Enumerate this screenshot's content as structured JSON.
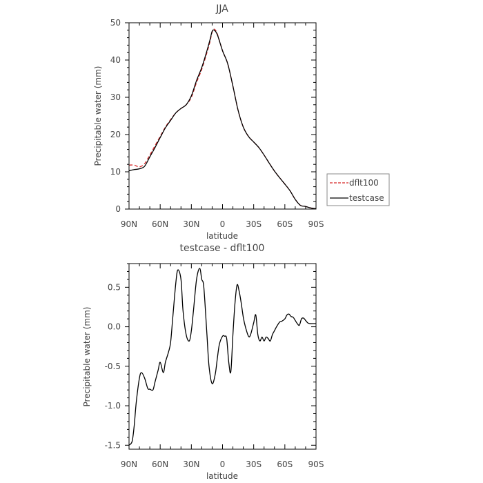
{
  "chart_data": [
    {
      "type": "line",
      "title": "JJA",
      "xlabel": "latitude",
      "ylabel": "Precipitable water (mm)",
      "xlim": [
        90,
        -90
      ],
      "ylim": [
        0,
        50
      ],
      "x_ticks": [
        90,
        60,
        30,
        0,
        -30,
        -60,
        -90
      ],
      "x_tick_labels": [
        "90N",
        "60N",
        "30N",
        "0",
        "30S",
        "60S",
        "90S"
      ],
      "y_ticks": [
        0,
        10,
        20,
        30,
        40,
        50
      ],
      "y_tick_labels": [
        "0",
        "10",
        "20",
        "30",
        "40",
        "50"
      ],
      "legend_position": "right",
      "series": [
        {
          "name": "dflt100",
          "color": "#d62728",
          "dash": "dashed",
          "x": [
            90,
            85,
            80,
            75,
            70,
            65,
            60,
            55,
            50,
            45,
            40,
            35,
            30,
            25,
            20,
            15,
            12,
            10,
            8,
            5,
            0,
            -5,
            -10,
            -15,
            -20,
            -25,
            -30,
            -35,
            -40,
            -45,
            -50,
            -55,
            -60,
            -65,
            -70,
            -75,
            -80,
            -85,
            -90
          ],
          "y": [
            11.8,
            11.8,
            11.3,
            12.2,
            14.5,
            17.0,
            19.5,
            22.0,
            24.0,
            25.8,
            27.0,
            28.0,
            30.0,
            34.0,
            37.5,
            42.0,
            45.0,
            47.5,
            48.3,
            47.0,
            42.5,
            39.0,
            33.0,
            26.5,
            22.0,
            19.5,
            18.0,
            16.5,
            14.5,
            12.3,
            10.2,
            8.4,
            6.7,
            4.9,
            2.6,
            1.0,
            0.7,
            0.3,
            0.1
          ]
        },
        {
          "name": "testcase",
          "color": "#000000",
          "dash": "solid",
          "x": [
            90,
            85,
            80,
            75,
            70,
            65,
            60,
            55,
            50,
            45,
            40,
            35,
            30,
            25,
            20,
            15,
            12,
            10,
            8,
            5,
            0,
            -5,
            -10,
            -15,
            -20,
            -25,
            -30,
            -35,
            -40,
            -45,
            -50,
            -55,
            -60,
            -65,
            -70,
            -75,
            -80,
            -85,
            -90
          ],
          "y": [
            10.3,
            10.6,
            10.8,
            11.5,
            14.0,
            16.5,
            19.2,
            21.8,
            23.8,
            25.8,
            27.0,
            28.0,
            30.4,
            34.5,
            38.0,
            42.5,
            45.5,
            47.7,
            48.0,
            46.8,
            42.5,
            39.0,
            33.0,
            26.5,
            22.0,
            19.5,
            18.0,
            16.5,
            14.5,
            12.3,
            10.2,
            8.4,
            6.7,
            4.9,
            2.6,
            1.0,
            0.7,
            0.3,
            0.1
          ]
        }
      ]
    },
    {
      "type": "line",
      "title": "testcase - dflt100",
      "xlabel": "latitude",
      "ylabel": "Precipitable water (mm)",
      "xlim": [
        90,
        -90
      ],
      "ylim": [
        -1.55,
        0.8
      ],
      "x_ticks": [
        90,
        60,
        30,
        0,
        -30,
        -60,
        -90
      ],
      "x_tick_labels": [
        "90N",
        "60N",
        "30N",
        "0",
        "30S",
        "60S",
        "90S"
      ],
      "y_ticks": [
        -1.5,
        -1.0,
        -0.5,
        0.0,
        0.5
      ],
      "y_tick_labels": [
        "-1.5",
        "-1.0",
        "-0.5",
        "0.0",
        "0.5"
      ],
      "series": [
        {
          "color": "#000000",
          "dash": "solid",
          "x": [
            90,
            87,
            85,
            83,
            80,
            78,
            75,
            72,
            70,
            67,
            65,
            62,
            60,
            57,
            55,
            52,
            50,
            48,
            45,
            43,
            40,
            38,
            35,
            32,
            30,
            28,
            25,
            22,
            20,
            18,
            15,
            13,
            10,
            7,
            5,
            3,
            0,
            -2,
            -4,
            -6,
            -8,
            -10,
            -12,
            -14,
            -16,
            -18,
            -20,
            -22,
            -25,
            -27,
            -30,
            -32,
            -34,
            -36,
            -38,
            -40,
            -42,
            -44,
            -46,
            -48,
            -50,
            -52,
            -55,
            -57,
            -60,
            -62,
            -64,
            -66,
            -68,
            -70,
            -72,
            -74,
            -76,
            -78,
            -80,
            -82,
            -84,
            -86,
            -88,
            -90
          ],
          "y": [
            -1.5,
            -1.45,
            -1.25,
            -0.95,
            -0.65,
            -0.58,
            -0.65,
            -0.78,
            -0.79,
            -0.8,
            -0.7,
            -0.55,
            -0.45,
            -0.58,
            -0.45,
            -0.32,
            -0.2,
            0.1,
            0.55,
            0.72,
            0.6,
            0.2,
            -0.1,
            -0.18,
            -0.05,
            0.2,
            0.6,
            0.74,
            0.6,
            0.5,
            -0.1,
            -0.5,
            -0.72,
            -0.6,
            -0.4,
            -0.22,
            -0.12,
            -0.12,
            -0.15,
            -0.45,
            -0.57,
            -0.1,
            0.3,
            0.53,
            0.45,
            0.3,
            0.12,
            0.0,
            -0.12,
            -0.1,
            0.05,
            0.15,
            -0.1,
            -0.18,
            -0.13,
            -0.18,
            -0.13,
            -0.15,
            -0.18,
            -0.1,
            -0.05,
            0.0,
            0.06,
            0.07,
            0.1,
            0.15,
            0.16,
            0.13,
            0.12,
            0.08,
            0.04,
            0.02,
            0.1,
            0.11,
            0.08,
            0.05,
            0.04,
            0.04,
            0.04,
            0.04
          ]
        }
      ]
    }
  ]
}
